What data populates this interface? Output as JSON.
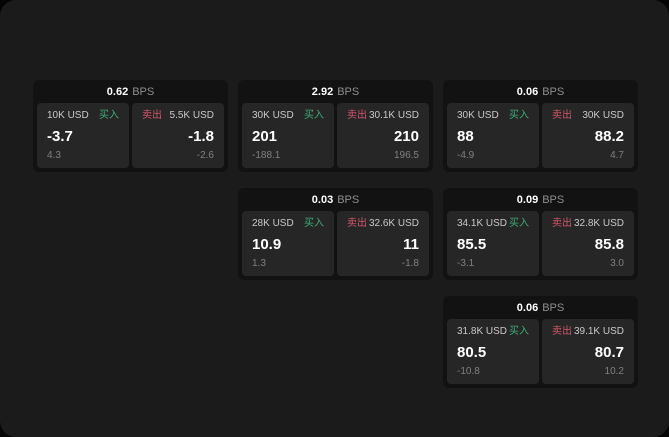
{
  "colors": {
    "buy": "#3eac78",
    "sell": "#d2566b"
  },
  "cards": [
    {
      "bps_value": "0.62",
      "bps_unit": "BPS",
      "buy": {
        "size": "10K USD",
        "label": "买入",
        "value": "-3.7",
        "delta": "4.3"
      },
      "sell": {
        "label": "卖出",
        "size": "5.5K USD",
        "value": "-1.8",
        "delta": "-2.6"
      }
    },
    {
      "bps_value": "2.92",
      "bps_unit": "BPS",
      "buy": {
        "size": "30K USD",
        "label": "买入",
        "value": "201",
        "delta": "-188.1"
      },
      "sell": {
        "label": "卖出",
        "size": "30.1K USD",
        "value": "210",
        "delta": "196.5"
      }
    },
    {
      "bps_value": "0.06",
      "bps_unit": "BPS",
      "buy": {
        "size": "30K USD",
        "label": "买入",
        "value": "88",
        "delta": "-4.9"
      },
      "sell": {
        "label": "卖出",
        "size": "30K USD",
        "value": "88.2",
        "delta": "4.7"
      }
    },
    {
      "bps_value": "0.03",
      "bps_unit": "BPS",
      "buy": {
        "size": "28K USD",
        "label": "买入",
        "value": "10.9",
        "delta": "1.3"
      },
      "sell": {
        "label": "卖出",
        "size": "32.6K USD",
        "value": "11",
        "delta": "-1.8"
      }
    },
    {
      "bps_value": "0.09",
      "bps_unit": "BPS",
      "buy": {
        "size": "34.1K USD",
        "label": "买入",
        "value": "85.5",
        "delta": "-3.1"
      },
      "sell": {
        "label": "卖出",
        "size": "32.8K USD",
        "value": "85.8",
        "delta": "3.0"
      }
    },
    {
      "bps_value": "0.06",
      "bps_unit": "BPS",
      "buy": {
        "size": "31.8K USD",
        "label": "买入",
        "value": "80.5",
        "delta": "-10.8"
      },
      "sell": {
        "label": "卖出",
        "size": "39.1K USD",
        "value": "80.7",
        "delta": "10.2"
      }
    }
  ]
}
